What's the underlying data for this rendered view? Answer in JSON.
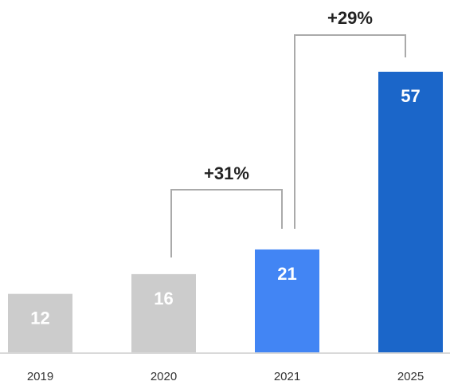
{
  "chart_data": {
    "type": "bar",
    "title": "",
    "xlabel": "",
    "ylabel": "",
    "categories": [
      "2019",
      "2020",
      "2021",
      "2025"
    ],
    "values": [
      12,
      16,
      21,
      57
    ],
    "value_labels": [
      "12",
      "16",
      "21",
      "57"
    ],
    "bar_colors": [
      "#cccccc",
      "#cccccc",
      "#4285f4",
      "#1b66c9"
    ],
    "ylim": [
      0,
      60
    ],
    "grid": false,
    "legend": "none",
    "annotations": [
      {
        "label": "+31%",
        "from": "2020",
        "to": "2021"
      },
      {
        "label": "+29%",
        "from": "2021",
        "to": "2025"
      }
    ]
  }
}
